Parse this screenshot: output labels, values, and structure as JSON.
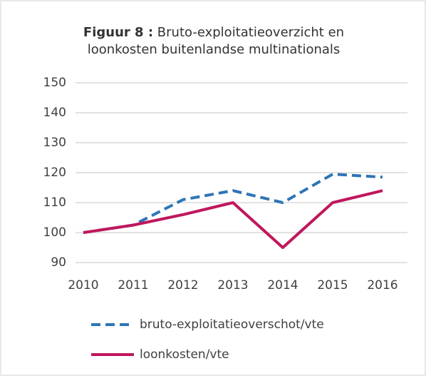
{
  "chart_data": {
    "type": "line",
    "title_label": "Figuur 8 :",
    "title": [
      "Bruto-exploitatieoverzicht en",
      "loonkosten buitenlandse multinationals"
    ],
    "categories": [
      "2010",
      "2011",
      "2012",
      "2013",
      "2014",
      "2015",
      "2016"
    ],
    "series": [
      {
        "name": "bruto-exploitatieoverschot/vte",
        "color": "#2e75b6",
        "dashed": true,
        "values": [
          100,
          102.5,
          111,
          114,
          110,
          119.5,
          118.5
        ]
      },
      {
        "name": "loonkosten/vte",
        "color": "#c0175d",
        "dashed": false,
        "values": [
          100,
          102.5,
          106,
          110,
          95,
          110,
          114
        ]
      }
    ],
    "ylim": [
      90,
      150
    ],
    "yticks": [
      90,
      100,
      110,
      120,
      130,
      140,
      150
    ],
    "grid": true,
    "legend": "bottom"
  }
}
